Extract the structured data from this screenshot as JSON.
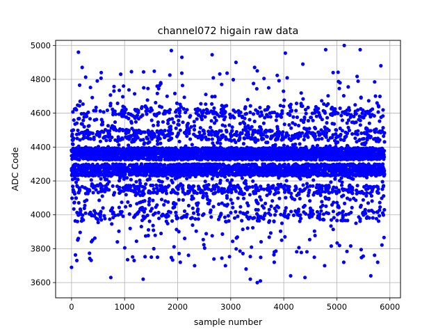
{
  "chart_data": {
    "type": "scatter",
    "title": "channel072 higain raw data",
    "xlabel": "sample number",
    "ylabel": "ADC Code",
    "xlim": [
      -300,
      6200
    ],
    "ylim": [
      3510,
      5030
    ],
    "xticks": [
      0,
      1000,
      2000,
      3000,
      4000,
      5000,
      6000
    ],
    "yticks": [
      3600,
      3800,
      4000,
      4200,
      4400,
      4600,
      4800,
      5000
    ],
    "grid": true,
    "marker_color": "#0000ff",
    "series": [
      {
        "n_samples": 5900,
        "bands": [
          {
            "center": 4360,
            "halfwidth": 35,
            "weight": 0.36
          },
          {
            "center": 4265,
            "halfwidth": 35,
            "weight": 0.3
          },
          {
            "center": 4150,
            "halfwidth": 25,
            "weight": 0.05
          },
          {
            "center": 4470,
            "halfwidth": 30,
            "weight": 0.05
          },
          {
            "center": 4000,
            "halfwidth": 25,
            "weight": 0.02
          },
          {
            "center": 4600,
            "halfwidth": 25,
            "weight": 0.02
          },
          {
            "center": 4100,
            "halfwidth": 140,
            "weight": 0.08
          },
          {
            "center": 4520,
            "halfwidth": 140,
            "weight": 0.08
          },
          {
            "center": 3850,
            "halfwidth": 120,
            "weight": 0.015
          },
          {
            "center": 4720,
            "halfwidth": 130,
            "weight": 0.015
          }
        ],
        "points": [
          {
            "x": 130,
            "y": 4960
          },
          {
            "x": 200,
            "y": 4870
          },
          {
            "x": 1880,
            "y": 4970
          },
          {
            "x": 2080,
            "y": 4930
          },
          {
            "x": 2650,
            "y": 4945
          },
          {
            "x": 3100,
            "y": 4900
          },
          {
            "x": 4030,
            "y": 4955
          },
          {
            "x": 4790,
            "y": 4975
          },
          {
            "x": 5140,
            "y": 5000
          },
          {
            "x": 5440,
            "y": 4975
          },
          {
            "x": 5830,
            "y": 4880
          },
          {
            "x": 3450,
            "y": 4870
          },
          {
            "x": 3500,
            "y": 4850
          },
          {
            "x": 4360,
            "y": 4890
          },
          {
            "x": 1130,
            "y": 4845
          },
          {
            "x": 560,
            "y": 4840
          },
          {
            "x": 1560,
            "y": 4848
          },
          {
            "x": 980,
            "y": 4760
          },
          {
            "x": 2830,
            "y": 4770
          },
          {
            "x": 4930,
            "y": 4840
          },
          {
            "x": 5060,
            "y": 4780
          },
          {
            "x": 0,
            "y": 3690
          },
          {
            "x": 100,
            "y": 3730
          },
          {
            "x": 740,
            "y": 3630
          },
          {
            "x": 1350,
            "y": 3620
          },
          {
            "x": 2320,
            "y": 3700
          },
          {
            "x": 2900,
            "y": 3700
          },
          {
            "x": 3370,
            "y": 3620
          },
          {
            "x": 3500,
            "y": 3600
          },
          {
            "x": 3560,
            "y": 3610
          },
          {
            "x": 4770,
            "y": 3700
          },
          {
            "x": 5640,
            "y": 3640
          },
          {
            "x": 5770,
            "y": 3720
          },
          {
            "x": 4130,
            "y": 3640
          },
          {
            "x": 4400,
            "y": 3630
          },
          {
            "x": 3290,
            "y": 3680
          },
          {
            "x": 1180,
            "y": 3730
          },
          {
            "x": 1620,
            "y": 3750
          },
          {
            "x": 2050,
            "y": 3720
          },
          {
            "x": 5130,
            "y": 3720
          },
          {
            "x": 1550,
            "y": 3800
          },
          {
            "x": 3820,
            "y": 3720
          }
        ]
      }
    ]
  }
}
